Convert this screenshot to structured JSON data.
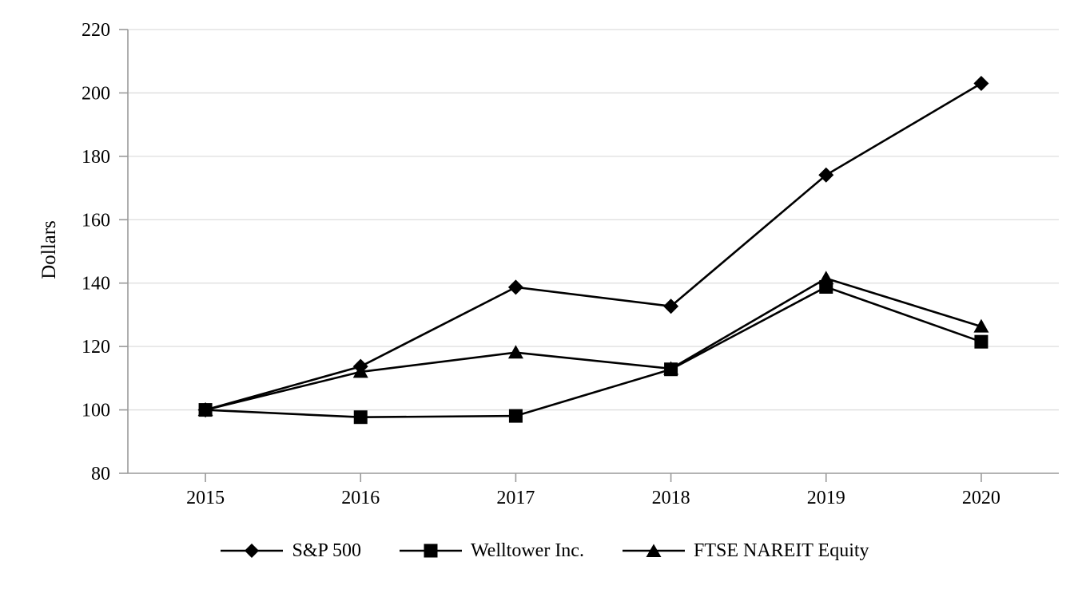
{
  "chart_data": {
    "type": "line",
    "title": "",
    "categories": [
      "2015",
      "2016",
      "2017",
      "2018",
      "2019",
      "2020"
    ],
    "series": [
      {
        "name": "S&P 500",
        "marker": "diamond",
        "values": [
          100.0,
          113.7,
          138.7,
          132.7,
          174.1,
          203.0
        ]
      },
      {
        "name": "Welltower Inc.",
        "marker": "square",
        "values": [
          100.0,
          97.7,
          98.1,
          112.8,
          138.8,
          121.5
        ]
      },
      {
        "name": "FTSE NAREIT Equity",
        "marker": "triangle",
        "values": [
          100.0,
          112.0,
          118.1,
          113.0,
          141.5,
          126.3
        ]
      }
    ],
    "xlabel": "",
    "ylabel": "Dollars",
    "ylim": [
      80,
      220
    ],
    "ytick_step": 20,
    "yticks": [
      80,
      100,
      120,
      140,
      160,
      180,
      200,
      220
    ],
    "grid": "horizontal-only",
    "legend_position": "bottom-center",
    "series_color": "#000000",
    "axis_color": "#9a9a9a",
    "grid_color": "#dddddd",
    "text_color": "#000000"
  }
}
